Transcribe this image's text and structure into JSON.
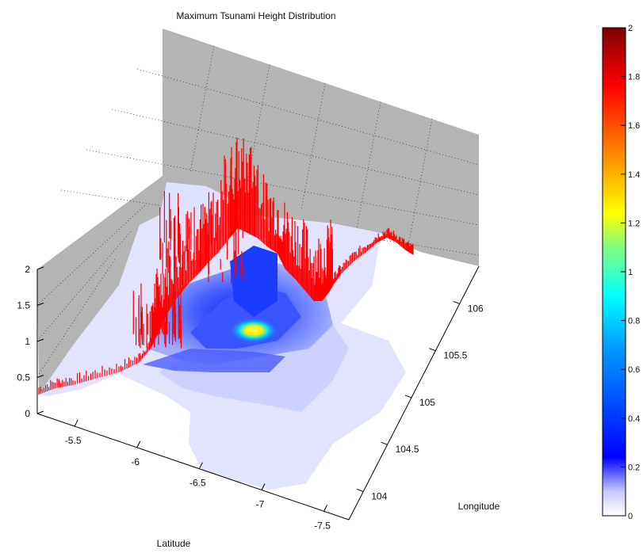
{
  "chart_data": {
    "type": "surface3d",
    "title": "Maximum Tsunami Height Distribution",
    "xlabel": "Latitude",
    "ylabel": "Longitude",
    "zlabel": "",
    "xlim": [
      -7.7,
      -5.2
    ],
    "ylim": [
      103.7,
      106.4
    ],
    "zlim": [
      0,
      2
    ],
    "x_ticks": [
      "-5.5",
      "-6",
      "-6.5",
      "-7",
      "-7.5"
    ],
    "y_ticks": [
      "104",
      "104.5",
      "105",
      "105.5",
      "106"
    ],
    "z_ticks": [
      "0",
      "0.5",
      "1",
      "1.5",
      "2"
    ],
    "grid": true,
    "colormap": "jet",
    "colorbar": {
      "range": [
        0,
        2
      ],
      "ticks": [
        "0",
        "0.2",
        "0.4",
        "0.6",
        "0.8",
        "1",
        "1.2",
        "1.4",
        "1.6",
        "1.8",
        "2"
      ]
    },
    "land_color": "#b4b4b4",
    "coast_spike_color": "#ff0000",
    "peak_value": 0.9
  }
}
